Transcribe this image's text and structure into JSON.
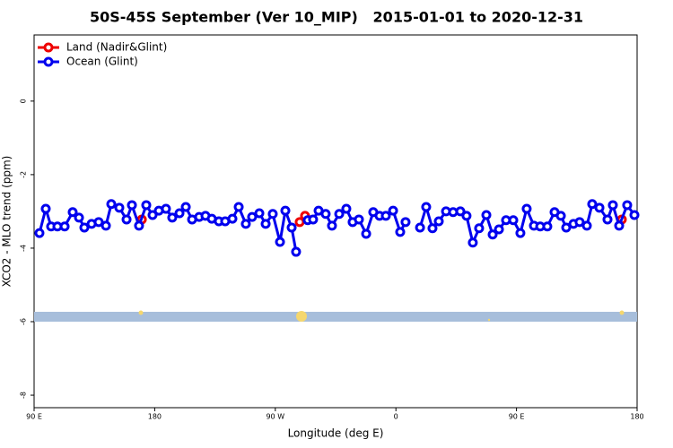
{
  "chart_data": {
    "type": "line",
    "title": "50S-45S September (Ver 10_MIP)   2015-01-01 to 2020-12-31",
    "xlabel": "Longitude (deg E)",
    "ylabel": "XCO2 - MLO trend (ppm)",
    "xlim": [
      90,
      540
    ],
    "xticks": [
      {
        "value": 90,
        "label": "90 E"
      },
      {
        "value": 180,
        "label": "180"
      },
      {
        "value": 270,
        "label": "90 W"
      },
      {
        "value": 360,
        "label": "0"
      },
      {
        "value": 450,
        "label": "90 E"
      },
      {
        "value": 540,
        "label": "180"
      }
    ],
    "ylim": [
      -8.34,
      1.8
    ],
    "yticks": [
      0,
      -2,
      -4,
      -6,
      -8
    ],
    "legend": "top-left",
    "series": [
      {
        "name": "Land (Nadir&Glint)",
        "color": "#ee0000",
        "x": [
          170.4,
          288.2,
          292.2,
          528.6
        ],
        "values": [
          -3.22,
          -3.29,
          -3.12,
          -3.22
        ]
      },
      {
        "name": "Ocean (Glint)",
        "color": "#0000ee",
        "x": [
          94.0,
          98.7,
          102.7,
          107.4,
          112.8,
          118.8,
          123.5,
          127.5,
          132.9,
          138.2,
          143.6,
          147.6,
          153.6,
          159.0,
          163.0,
          168.3,
          173.7,
          178.4,
          183.1,
          188.4,
          193.1,
          198.5,
          203.2,
          207.9,
          213.2,
          217.9,
          222.6,
          227.9,
          232.6,
          238.0,
          242.7,
          248.0,
          252.7,
          258.1,
          262.8,
          268.1,
          273.5,
          277.5,
          282.2,
          285.5,
          294.2,
          298.2,
          302.3,
          307.6,
          312.3,
          317.7,
          323.0,
          327.7,
          332.4,
          337.8,
          343.1,
          347.8,
          352.5,
          357.9,
          363.2,
          367.2,
          378.0,
          382.6,
          387.3,
          392.0,
          397.4,
          402.7,
          408.1,
          412.7,
          417.4,
          422.1,
          427.5,
          432.2,
          436.9,
          442.2,
          447.6,
          452.9,
          457.6,
          463.0,
          467.7,
          473.0,
          478.4,
          483.1,
          487.1,
          492.5,
          497.1,
          502.5,
          506.5,
          511.9,
          517.9,
          521.9,
          526.6,
          532.6,
          538.0
        ],
        "values": [
          -3.59,
          -2.93,
          -3.41,
          -3.41,
          -3.41,
          -3.02,
          -3.17,
          -3.44,
          -3.34,
          -3.29,
          -3.39,
          -2.8,
          -2.9,
          -3.22,
          -2.83,
          -3.39,
          -2.83,
          -3.1,
          -2.98,
          -2.93,
          -3.17,
          -3.05,
          -2.88,
          -3.22,
          -3.15,
          -3.12,
          -3.2,
          -3.27,
          -3.27,
          -3.2,
          -2.88,
          -3.34,
          -3.15,
          -3.05,
          -3.34,
          -3.07,
          -3.83,
          -2.98,
          -3.44,
          -4.1,
          -3.24,
          -3.22,
          -2.98,
          -3.07,
          -3.39,
          -3.07,
          -2.93,
          -3.29,
          -3.22,
          -3.61,
          -3.02,
          -3.12,
          -3.12,
          -2.98,
          -3.56,
          -3.29,
          -3.44,
          -2.88,
          -3.46,
          -3.27,
          -3.0,
          -3.02,
          -3.0,
          -3.12,
          -3.85,
          -3.46,
          -3.1,
          -3.63,
          -3.49,
          -3.24,
          -3.24,
          -3.59,
          -2.93,
          -3.39,
          -3.41,
          -3.41,
          -3.02,
          -3.12,
          -3.44,
          -3.34,
          -3.29,
          -3.39,
          -2.8,
          -2.9,
          -3.22,
          -2.83,
          -3.39,
          -2.83,
          -3.1
        ]
      }
    ]
  }
}
